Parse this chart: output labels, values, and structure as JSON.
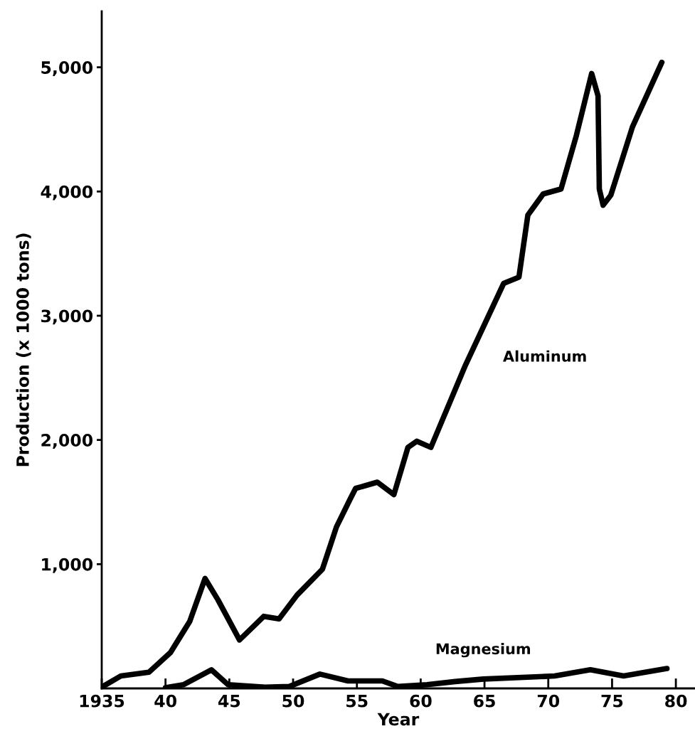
{
  "chart_data": {
    "type": "line",
    "xlabel": "Year",
    "ylabel": "Production (x 1000 tons)",
    "xlim": [
      1935,
      1981.5
    ],
    "ylim": [
      0,
      5450
    ],
    "xticks": [
      {
        "value": 1935,
        "label": "1935"
      },
      {
        "value": 1940,
        "label": "40"
      },
      {
        "value": 1945,
        "label": "45"
      },
      {
        "value": 1950,
        "label": "50"
      },
      {
        "value": 1955,
        "label": "55"
      },
      {
        "value": 1960,
        "label": "60"
      },
      {
        "value": 1965,
        "label": "65"
      },
      {
        "value": 1970,
        "label": "70"
      },
      {
        "value": 1975,
        "label": "75"
      },
      {
        "value": 1980,
        "label": "80"
      }
    ],
    "yticks": [
      {
        "value": 1000,
        "label": "1,000"
      },
      {
        "value": 2000,
        "label": "2,000"
      },
      {
        "value": 3000,
        "label": "3,000"
      },
      {
        "value": 4000,
        "label": "4,000"
      },
      {
        "value": 5000,
        "label": "5,000"
      }
    ],
    "grid": false,
    "legend": false,
    "marker": "none",
    "line_style": "solid",
    "series": [
      {
        "name": "Aluminum",
        "color": "#000000",
        "x": [
          1935,
          1936.5,
          1938.7,
          1940.4,
          1941.9,
          1943.1,
          1944.1,
          1945.8,
          1947.7,
          1948.9,
          1950.3,
          1952.3,
          1953.4,
          1954.5,
          1954.9,
          1956.6,
          1957.9,
          1959.0,
          1959.7,
          1960.8,
          1963.5,
          1966.5,
          1967.7,
          1968.4,
          1969.6,
          1971.0,
          1972.2,
          1973.4,
          1973.9,
          1974.0,
          1974.3,
          1974.9,
          1976.6,
          1978.9
        ],
        "values": [
          10,
          100,
          130,
          290,
          540,
          885,
          715,
          390,
          580,
          560,
          750,
          960,
          1300,
          1530,
          1610,
          1660,
          1560,
          1940,
          1990,
          1940,
          2600,
          3260,
          3310,
          3810,
          3980,
          4020,
          4450,
          4950,
          4770,
          4020,
          3890,
          3970,
          4520,
          5040
        ]
      },
      {
        "name": "Magnesium",
        "color": "#000000",
        "x": [
          1940,
          1941.4,
          1943.6,
          1944.9,
          1947.8,
          1949.7,
          1952.1,
          1954.3,
          1957,
          1958.2,
          1960.5,
          1962.7,
          1964.9,
          1970.5,
          1973.3,
          1975.9,
          1979.3
        ],
        "values": [
          5,
          30,
          150,
          30,
          10,
          15,
          115,
          60,
          60,
          15,
          30,
          55,
          75,
          100,
          150,
          100,
          160
        ]
      }
    ]
  }
}
